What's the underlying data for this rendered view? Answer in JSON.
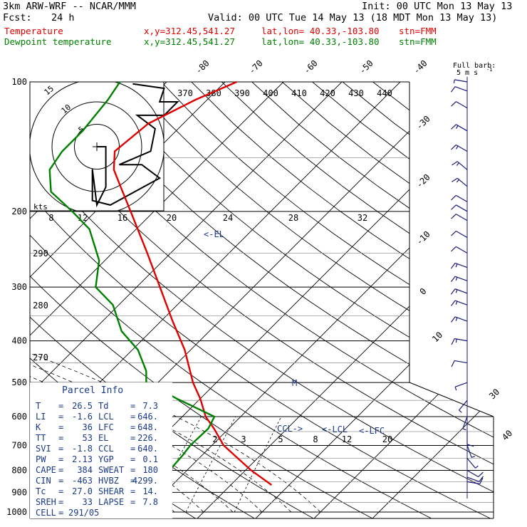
{
  "header": {
    "model": "3km ARW-WRF -- NCAR/MMM",
    "init": "Init: 00 UTC Mon 13 May 13",
    "fcst_label": "Fcst:",
    "fcst_value": "24 h",
    "valid": "Valid: 00 UTC Tue 14 May 13 (18 MDT Mon 13 May 13)",
    "temp_name": "Temperature",
    "dew_name": "Dewpoint temperature",
    "xy": "x,y=312.45,541.27",
    "latlon": "lat,lon= 40.33,-103.80",
    "stn": "stn=FMM"
  },
  "colors": {
    "temperature": "#e00000",
    "dewpoint": "#008000",
    "parcel_box": "#1a3a8a",
    "barb": "#1a1a7a",
    "grid": "#000000"
  },
  "barb_legend": {
    "line1": "Full barb:",
    "line2": "5 m s",
    "exp": "-1"
  },
  "hodograph": {
    "unit_label": "kts",
    "rings": [
      "5",
      "10",
      "15"
    ]
  },
  "markers": {
    "el": "<-EL",
    "ccl": "CCL->",
    "lcl": "<-LCL",
    "lfc": "<-LFC",
    "m": "M"
  },
  "parcel_info": {
    "title": "Parcel Info",
    "rows": [
      {
        "l1": "T",
        "v1": "26.5",
        "l2": "Td",
        "v2": "7.3"
      },
      {
        "l1": "LI",
        "v1": "-1.6",
        "l2": "LCL",
        "v2": "646."
      },
      {
        "l1": "K",
        "v1": "36",
        "l2": "LFC",
        "v2": "648."
      },
      {
        "l1": "TT",
        "v1": "53",
        "l2": "EL",
        "v2": "226."
      },
      {
        "l1": "SVI",
        "v1": "-1.8",
        "l2": "CCL",
        "v2": "640."
      },
      {
        "l1": "PW",
        "v1": "2.13",
        "l2": "YGP",
        "v2": "0.1"
      },
      {
        "l1": "CAPE",
        "v1": "384",
        "l2": "SWEAT",
        "v2": "180"
      },
      {
        "l1": "CIN",
        "v1": "-463",
        "l2": "HVBZ",
        "v2": "4299."
      },
      {
        "l1": "Tc",
        "v1": "27.0",
        "l2": "SHEAR",
        "v2": "14."
      },
      {
        "l1": "SREH",
        "v1": "33",
        "l2": "LAPSE",
        "v2": "7.8"
      }
    ],
    "cell_label": "CELL",
    "cell_value": "291/05"
  },
  "chart_data": {
    "type": "line",
    "pressure_ticks": [
      "100",
      "200",
      "300",
      "400",
      "500",
      "600",
      "700",
      "800",
      "900",
      "1000"
    ],
    "isotherm_labels": [
      "-80",
      "-70",
      "-60",
      "-50",
      "-40",
      "-30",
      "-20",
      "-10",
      "0",
      "10",
      "30",
      "40"
    ],
    "theta_labels": [
      "370",
      "380",
      "390",
      "400",
      "410",
      "420",
      "430",
      "440"
    ],
    "theta_left_labels": [
      "290",
      "280",
      "270"
    ],
    "mixing_ratio_labels_upper": [
      "8",
      "12",
      "16",
      "20",
      "24",
      "28",
      "32"
    ],
    "mixing_ratio_labels_lower": [
      "2",
      "3",
      "5",
      "8",
      "12",
      "20"
    ],
    "series": [
      {
        "name": "Temperature",
        "pressure_hpa": [
          865,
          800,
          700,
          640,
          600,
          545,
          500,
          420,
          360,
          300,
          250,
          200,
          175,
          160,
          145,
          125,
          110,
          100
        ],
        "temp_c": [
          27,
          21,
          12,
          7.5,
          4,
          0,
          -4,
          -11,
          -18,
          -26,
          -34,
          -44,
          -50,
          -54,
          -57,
          -56,
          -52,
          -48
        ]
      },
      {
        "name": "Dewpoint temperature",
        "pressure_hpa": [
          865,
          800,
          740,
          700,
          640,
          600,
          545,
          500,
          470,
          420,
          380,
          330,
          300,
          260,
          220,
          200,
          180,
          160,
          145,
          130,
          110,
          100
        ],
        "temp_c": [
          7,
          7,
          6.7,
          6.3,
          6.5,
          5.5,
          -4,
          -12,
          -14,
          -19,
          -25,
          -31,
          -37,
          -41,
          -48,
          -54,
          -61,
          -65,
          -66,
          -66,
          -67,
          -68
        ]
      }
    ],
    "hodograph_trace_kts": [
      [
        0,
        0
      ],
      [
        2,
        0
      ],
      [
        2,
        -9
      ],
      [
        0,
        -13
      ],
      [
        -1,
        -5
      ],
      [
        -1,
        -12
      ],
      [
        3,
        -13
      ],
      [
        14,
        -7
      ],
      [
        10,
        -4
      ],
      [
        5,
        -4
      ],
      [
        12,
        -1
      ],
      [
        13,
        4
      ],
      [
        9,
        7
      ],
      [
        15,
        7
      ],
      [
        18,
        10
      ],
      [
        14,
        10
      ],
      [
        15,
        13
      ],
      [
        8,
        14
      ]
    ],
    "wind_barbs": [
      {
        "p": 100,
        "speed_kts": 5,
        "dir_deg": 280
      },
      {
        "p": 105,
        "speed_kts": 10,
        "dir_deg": 290
      },
      {
        "p": 115,
        "speed_kts": 10,
        "dir_deg": 300
      },
      {
        "p": 130,
        "speed_kts": 15,
        "dir_deg": 300
      },
      {
        "p": 145,
        "speed_kts": 15,
        "dir_deg": 300
      },
      {
        "p": 160,
        "speed_kts": 15,
        "dir_deg": 310
      },
      {
        "p": 175,
        "speed_kts": 15,
        "dir_deg": 310
      },
      {
        "p": 190,
        "speed_kts": 10,
        "dir_deg": 300
      },
      {
        "p": 200,
        "speed_kts": 10,
        "dir_deg": 300
      },
      {
        "p": 210,
        "speed_kts": 10,
        "dir_deg": 300
      },
      {
        "p": 230,
        "speed_kts": 10,
        "dir_deg": 300
      },
      {
        "p": 250,
        "speed_kts": 10,
        "dir_deg": 300
      },
      {
        "p": 270,
        "speed_kts": 15,
        "dir_deg": 290
      },
      {
        "p": 290,
        "speed_kts": 15,
        "dir_deg": 290
      },
      {
        "p": 310,
        "speed_kts": 15,
        "dir_deg": 290
      },
      {
        "p": 330,
        "speed_kts": 15,
        "dir_deg": 290
      },
      {
        "p": 360,
        "speed_kts": 15,
        "dir_deg": 290
      },
      {
        "p": 400,
        "speed_kts": 15,
        "dir_deg": 280
      },
      {
        "p": 450,
        "speed_kts": 10,
        "dir_deg": 280
      },
      {
        "p": 500,
        "speed_kts": 5,
        "dir_deg": 250
      },
      {
        "p": 550,
        "speed_kts": 5,
        "dir_deg": 220
      },
      {
        "p": 600,
        "speed_kts": 5,
        "dir_deg": 200
      },
      {
        "p": 650,
        "speed_kts": 10,
        "dir_deg": 180
      },
      {
        "p": 700,
        "speed_kts": 5,
        "dir_deg": 160
      },
      {
        "p": 750,
        "speed_kts": 5,
        "dir_deg": 140
      },
      {
        "p": 800,
        "speed_kts": 10,
        "dir_deg": 120
      },
      {
        "p": 830,
        "speed_kts": 10,
        "dir_deg": 110
      },
      {
        "p": 850,
        "speed_kts": 10,
        "dir_deg": 100
      }
    ]
  }
}
